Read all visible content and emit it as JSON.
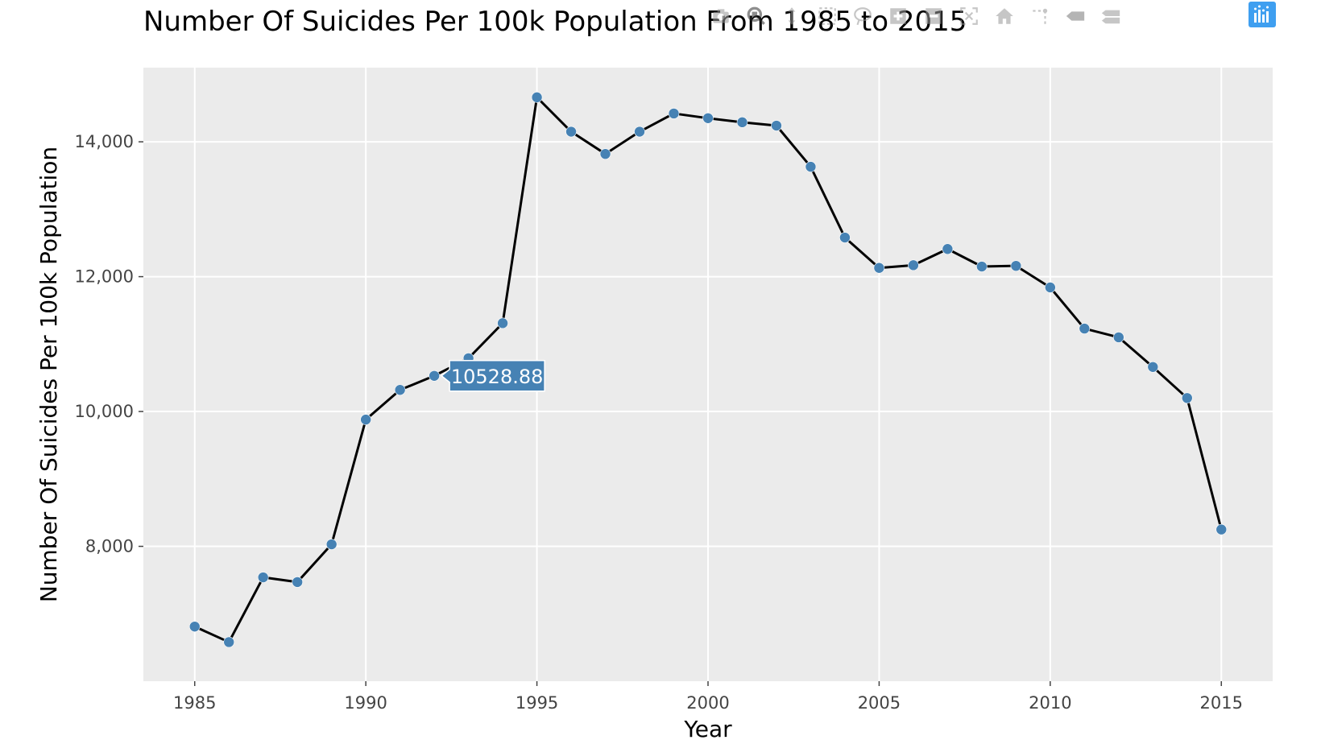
{
  "chart_data": {
    "type": "line",
    "title": "Number Of Suicides Per 100k Population From 1985 to 2015",
    "xlabel": "Year",
    "ylabel": "Number Of Suicides Per 100k Population",
    "xlim": [
      1983.5,
      2016.5
    ],
    "ylim": [
      6000,
      15100
    ],
    "xticks": [
      1985,
      1990,
      1995,
      2000,
      2005,
      2010,
      2015
    ],
    "xtick_labels": [
      "1985",
      "1990",
      "1995",
      "2000",
      "2005",
      "2010",
      "2015"
    ],
    "yticks": [
      8000,
      10000,
      12000,
      14000
    ],
    "ytick_labels": [
      "8,000",
      "10,000",
      "12,000",
      "14,000"
    ],
    "grid": true,
    "series": [
      {
        "x": [
          1985,
          1986,
          1987,
          1988,
          1989,
          1990,
          1991,
          1992,
          1993,
          1994,
          1995,
          1996,
          1997,
          1998,
          1999,
          2000,
          2001,
          2002,
          2003,
          2004,
          2005,
          2006,
          2007,
          2008,
          2009,
          2010,
          2011,
          2012,
          2013,
          2014,
          2015
        ],
        "y": [
          6810,
          6580,
          7540,
          7470,
          8030,
          9880,
          10320,
          10528.88,
          10790,
          11310,
          14660,
          14150,
          13820,
          14150,
          14420,
          14350,
          14290,
          14240,
          13630,
          12580,
          12130,
          12170,
          12410,
          12150,
          12160,
          11840,
          11230,
          11100,
          10660,
          10200,
          8250
        ]
      }
    ],
    "hover": {
      "x": 1992,
      "y": 10528.88,
      "label": "10528.88"
    },
    "colors": {
      "line": "#000000",
      "marker": "#4682b4",
      "panel": "#ebebeb",
      "grid": "#ffffff"
    }
  },
  "modebar": {
    "icons": [
      "camera-icon",
      "zoom-icon",
      "pan-icon",
      "box-select-icon",
      "lasso-icon",
      "zoom-in-icon",
      "zoom-out-icon",
      "autoscale-icon",
      "reset-axes-icon",
      "spike-lines-icon",
      "hover-closest-icon",
      "hover-compare-icon",
      "plotly-logo-icon"
    ]
  }
}
